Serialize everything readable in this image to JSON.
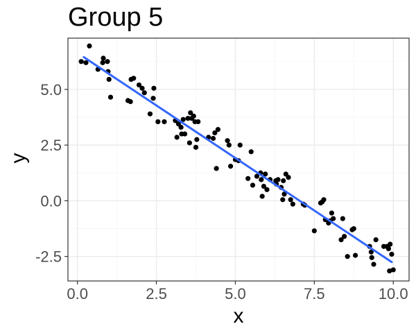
{
  "chart_data": {
    "type": "scatter",
    "title": "Group 5",
    "xlabel": "x",
    "ylabel": "y",
    "xlim": [
      -0.3,
      10.5
    ],
    "ylim": [
      -3.6,
      7.3
    ],
    "x_ticks": [
      0.0,
      2.5,
      5.0,
      7.5,
      10.0
    ],
    "x_tick_labels": [
      "0.0",
      "2.5",
      "5.0",
      "7.5",
      "10.0"
    ],
    "y_ticks": [
      -2.5,
      0.0,
      2.5,
      5.0
    ],
    "y_tick_labels": [
      "-2.5",
      "0.0",
      "2.5",
      "5.0"
    ],
    "grid": true,
    "legend": "none",
    "point_color": "#000000",
    "line_color": "#3366ff",
    "panel_border_color": "#333333",
    "grid_major_color": "#ebebeb",
    "grid_minor_color": "#f5f5f5",
    "trend_line": {
      "type": "linear",
      "x": [
        0.2,
        9.95
      ],
      "y": [
        6.45,
        -2.75
      ]
    },
    "points": [
      {
        "x": 0.12,
        "y": 6.25
      },
      {
        "x": 0.27,
        "y": 6.2
      },
      {
        "x": 0.38,
        "y": 6.95
      },
      {
        "x": 0.65,
        "y": 5.9
      },
      {
        "x": 0.8,
        "y": 6.2
      },
      {
        "x": 0.82,
        "y": 6.4
      },
      {
        "x": 0.95,
        "y": 6.25
      },
      {
        "x": 0.97,
        "y": 5.8
      },
      {
        "x": 1.0,
        "y": 5.45
      },
      {
        "x": 1.05,
        "y": 4.65
      },
      {
        "x": 1.6,
        "y": 4.5
      },
      {
        "x": 1.68,
        "y": 4.45
      },
      {
        "x": 1.7,
        "y": 5.45
      },
      {
        "x": 1.78,
        "y": 5.5
      },
      {
        "x": 1.95,
        "y": 5.2
      },
      {
        "x": 2.05,
        "y": 5.05
      },
      {
        "x": 2.12,
        "y": 4.85
      },
      {
        "x": 2.3,
        "y": 3.9
      },
      {
        "x": 2.4,
        "y": 4.6
      },
      {
        "x": 2.42,
        "y": 5.05
      },
      {
        "x": 2.55,
        "y": 3.55
      },
      {
        "x": 2.75,
        "y": 3.55
      },
      {
        "x": 3.1,
        "y": 3.6
      },
      {
        "x": 3.15,
        "y": 2.85
      },
      {
        "x": 3.2,
        "y": 3.45
      },
      {
        "x": 3.28,
        "y": 3.3
      },
      {
        "x": 3.3,
        "y": 3.0
      },
      {
        "x": 3.35,
        "y": 3.65
      },
      {
        "x": 3.4,
        "y": 3.0
      },
      {
        "x": 3.5,
        "y": 3.7
      },
      {
        "x": 3.55,
        "y": 2.6
      },
      {
        "x": 3.58,
        "y": 3.95
      },
      {
        "x": 3.62,
        "y": 3.7
      },
      {
        "x": 3.68,
        "y": 3.8
      },
      {
        "x": 3.72,
        "y": 3.55
      },
      {
        "x": 3.75,
        "y": 2.4
      },
      {
        "x": 3.78,
        "y": 2.75
      },
      {
        "x": 3.82,
        "y": 3.55
      },
      {
        "x": 4.15,
        "y": 2.85
      },
      {
        "x": 4.3,
        "y": 2.8
      },
      {
        "x": 4.35,
        "y": 3.05
      },
      {
        "x": 4.4,
        "y": 1.45
      },
      {
        "x": 4.45,
        "y": 3.2
      },
      {
        "x": 4.75,
        "y": 2.7
      },
      {
        "x": 4.8,
        "y": 2.5
      },
      {
        "x": 4.85,
        "y": 1.55
      },
      {
        "x": 5.0,
        "y": 1.85
      },
      {
        "x": 5.1,
        "y": 1.8
      },
      {
        "x": 5.15,
        "y": 2.5
      },
      {
        "x": 5.4,
        "y": 1.0
      },
      {
        "x": 5.5,
        "y": 2.2
      },
      {
        "x": 5.55,
        "y": 0.7
      },
      {
        "x": 5.68,
        "y": 1.1
      },
      {
        "x": 5.8,
        "y": 1.25
      },
      {
        "x": 5.82,
        "y": 0.95
      },
      {
        "x": 5.85,
        "y": 0.2
      },
      {
        "x": 5.9,
        "y": 0.65
      },
      {
        "x": 5.95,
        "y": 1.2
      },
      {
        "x": 6.0,
        "y": 0.5
      },
      {
        "x": 6.1,
        "y": 0.95
      },
      {
        "x": 6.28,
        "y": 0.9
      },
      {
        "x": 6.3,
        "y": 0.75
      },
      {
        "x": 6.35,
        "y": 0.95
      },
      {
        "x": 6.45,
        "y": 0.6
      },
      {
        "x": 6.5,
        "y": 0.05
      },
      {
        "x": 6.52,
        "y": 0.9
      },
      {
        "x": 6.55,
        "y": 0.3
      },
      {
        "x": 6.6,
        "y": 1.2
      },
      {
        "x": 6.68,
        "y": 1.05
      },
      {
        "x": 6.75,
        "y": 0.05
      },
      {
        "x": 6.82,
        "y": -0.15
      },
      {
        "x": 7.15,
        "y": -0.15
      },
      {
        "x": 7.2,
        "y": -0.2
      },
      {
        "x": 7.5,
        "y": -1.35
      },
      {
        "x": 7.7,
        "y": -0.1
      },
      {
        "x": 7.75,
        "y": -0.05
      },
      {
        "x": 7.8,
        "y": 0.05
      },
      {
        "x": 7.85,
        "y": -0.85
      },
      {
        "x": 7.95,
        "y": -1.0
      },
      {
        "x": 8.0,
        "y": -0.9
      },
      {
        "x": 8.05,
        "y": -0.55
      },
      {
        "x": 8.1,
        "y": -0.8
      },
      {
        "x": 8.35,
        "y": -1.75
      },
      {
        "x": 8.4,
        "y": -0.8
      },
      {
        "x": 8.45,
        "y": -1.6
      },
      {
        "x": 8.55,
        "y": -2.5
      },
      {
        "x": 8.7,
        "y": -1.3
      },
      {
        "x": 8.75,
        "y": -1.25
      },
      {
        "x": 8.8,
        "y": -2.45
      },
      {
        "x": 9.25,
        "y": -2.05
      },
      {
        "x": 9.3,
        "y": -2.3
      },
      {
        "x": 9.32,
        "y": -2.55
      },
      {
        "x": 9.38,
        "y": -2.85
      },
      {
        "x": 9.45,
        "y": -1.75
      },
      {
        "x": 9.7,
        "y": -2.05
      },
      {
        "x": 9.8,
        "y": -2.05
      },
      {
        "x": 9.85,
        "y": -2.15
      },
      {
        "x": 9.9,
        "y": -1.95
      },
      {
        "x": 9.95,
        "y": -2.4
      },
      {
        "x": 9.88,
        "y": -3.15
      },
      {
        "x": 10.0,
        "y": -3.1
      }
    ]
  }
}
